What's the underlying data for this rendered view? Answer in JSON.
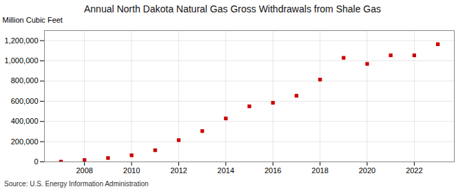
{
  "chart_data": {
    "type": "scatter",
    "title": "Annual North Dakota Natural Gas Gross Withdrawals from Shale Gas",
    "ylabel": "Million Cubic Feet",
    "source": "Source: U.S. Energy Information Administration",
    "x": [
      2007,
      2008,
      2009,
      2010,
      2011,
      2012,
      2013,
      2014,
      2015,
      2016,
      2017,
      2018,
      2019,
      2020,
      2021,
      2022,
      2023
    ],
    "values": [
      2000,
      18000,
      38000,
      65000,
      115000,
      215000,
      305000,
      430000,
      550000,
      585000,
      655000,
      815000,
      1030000,
      970000,
      1055000,
      1055000,
      1165000
    ],
    "color": "#cc0000",
    "marker": "square",
    "xlim": [
      2006.3,
      2023.7
    ],
    "xticks": [
      2008,
      2010,
      2012,
      2014,
      2016,
      2018,
      2020,
      2022
    ],
    "ylim": [
      0,
      1300000
    ],
    "yticks": [
      0,
      {
        "value": 200000,
        "label": "200,000"
      },
      {
        "value": 400000,
        "label": "400,000"
      },
      {
        "value": 600000,
        "label": "600,000"
      },
      {
        "value": 800000,
        "label": "800,000"
      },
      {
        "value": 1000000,
        "label": "1,000,000"
      },
      {
        "value": 1200000,
        "label": "1,200,000"
      }
    ],
    "grid": true
  }
}
